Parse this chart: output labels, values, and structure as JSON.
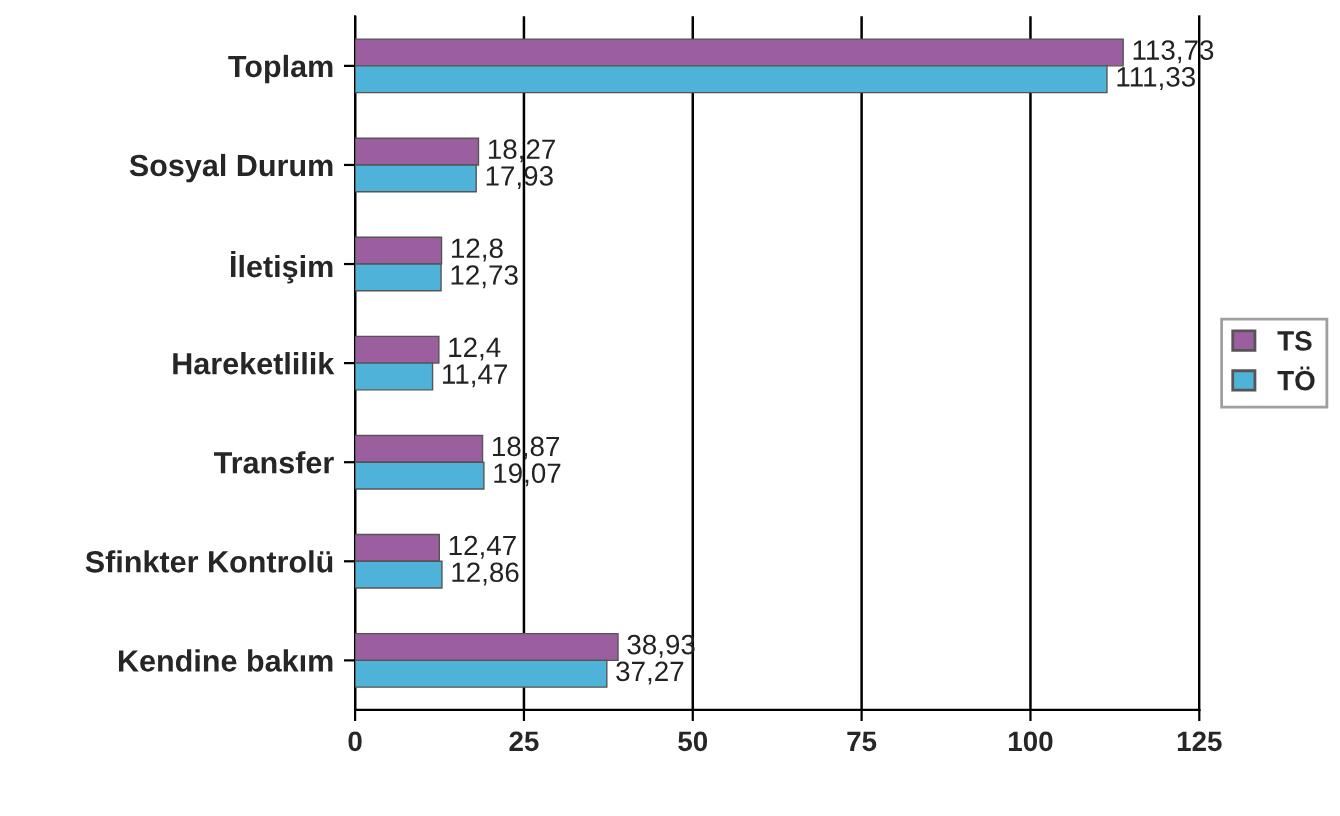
{
  "chart_data": {
    "type": "bar",
    "orientation": "horizontal",
    "categories": [
      "Toplam",
      "Sosyal Durum",
      "İletişim",
      "Hareketlilik",
      "Transfer",
      "Sfinkter Kontrolü",
      "Kendine bakım"
    ],
    "series": [
      {
        "name": "TS",
        "color": "#9b5fa0",
        "values": [
          113.73,
          18.27,
          12.8,
          12.4,
          18.87,
          12.47,
          38.93
        ],
        "value_labels": [
          "113,73",
          "18,27",
          "12,8",
          "12,4",
          "18,87",
          "12,47",
          "38,93"
        ]
      },
      {
        "name": "TÖ",
        "color": "#4fb3d9",
        "values": [
          111.33,
          17.93,
          12.73,
          11.47,
          19.07,
          12.86,
          37.27
        ],
        "value_labels": [
          "111,33",
          "17,93",
          "12,73",
          "11,47",
          "19,07",
          "12,86",
          "37,27"
        ]
      }
    ],
    "xlim": [
      0,
      125
    ],
    "xticks": [
      0,
      25,
      50,
      75,
      100,
      125
    ],
    "grid": "x",
    "legend": "right"
  }
}
